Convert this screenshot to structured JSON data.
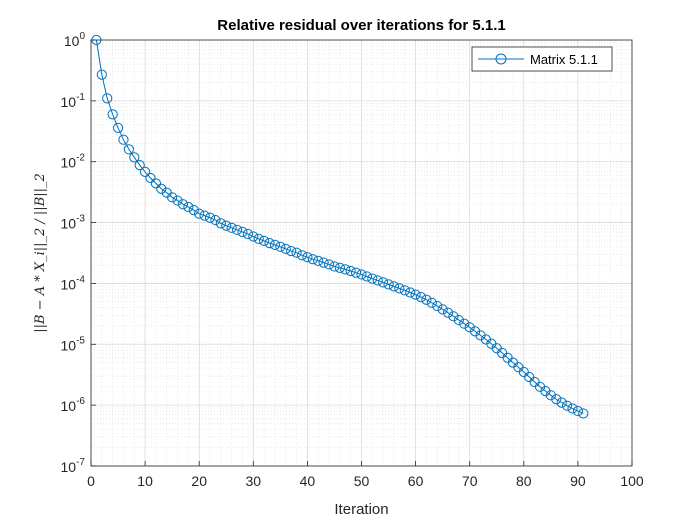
{
  "chart_data": {
    "type": "line",
    "title": "Relative residual over iterations for 5.1.1",
    "xlabel": "Iteration",
    "ylabel": "||B − A * X_i||_2 / ||B||_2",
    "y_scale": "log",
    "xlim": [
      0,
      100
    ],
    "ylim": [
      1e-07,
      1
    ],
    "x_ticks": [
      0,
      10,
      20,
      30,
      40,
      50,
      60,
      70,
      80,
      90,
      100
    ],
    "y_ticks": [
      {
        "base": "10",
        "exp": "0"
      },
      {
        "base": "10",
        "exp": "-1"
      },
      {
        "base": "10",
        "exp": "-2"
      },
      {
        "base": "10",
        "exp": "-3"
      },
      {
        "base": "10",
        "exp": "-4"
      },
      {
        "base": "10",
        "exp": "-5"
      },
      {
        "base": "10",
        "exp": "-6"
      },
      {
        "base": "10",
        "exp": "-7"
      }
    ],
    "grid": true,
    "minor_grid": true,
    "legend_location": "top-right",
    "marker": "open-circle",
    "series": [
      {
        "name": "Matrix 5.1.1",
        "color": "#0072BD",
        "x": [
          1,
          2,
          3,
          4,
          5,
          6,
          7,
          8,
          9,
          10,
          11,
          12,
          13,
          14,
          15,
          16,
          17,
          18,
          19,
          20,
          21,
          22,
          23,
          24,
          25,
          26,
          27,
          28,
          29,
          30,
          31,
          32,
          33,
          34,
          35,
          36,
          37,
          38,
          39,
          40,
          41,
          42,
          43,
          44,
          45,
          46,
          47,
          48,
          49,
          50,
          51,
          52,
          53,
          54,
          55,
          56,
          57,
          58,
          59,
          60,
          61,
          62,
          63,
          64,
          65,
          66,
          67,
          68,
          69,
          70,
          71,
          72,
          73,
          74,
          75,
          76,
          77,
          78,
          79,
          80,
          81,
          82,
          83,
          84,
          85,
          86,
          87,
          88,
          89,
          90,
          91
        ],
        "values": [
          1.0,
          0.27,
          0.11,
          0.06,
          0.036,
          0.023,
          0.016,
          0.0118,
          0.0088,
          0.0068,
          0.0054,
          0.0044,
          0.0036,
          0.0031,
          0.0026,
          0.0023,
          0.002,
          0.0018,
          0.0016,
          0.0014,
          0.0013,
          0.0012,
          0.0011,
          0.00097,
          0.00089,
          0.00082,
          0.00076,
          0.0007,
          0.00065,
          0.00059,
          0.00054,
          0.0005,
          0.00046,
          0.00043,
          0.0004,
          0.00037,
          0.00034,
          0.00032,
          0.00029,
          0.00027,
          0.00025,
          0.000235,
          0.00022,
          0.000205,
          0.00019,
          0.00018,
          0.00017,
          0.00016,
          0.00015,
          0.00014,
          0.00013,
          0.00012,
          0.000112,
          0.000104,
          9.65e-05,
          8.95e-05,
          8.3e-05,
          7.7e-05,
          7.1e-05,
          6.55e-05,
          5.95e-05,
          5.4e-05,
          4.8e-05,
          4.25e-05,
          3.75e-05,
          3.3e-05,
          2.88e-05,
          2.5e-05,
          2.18e-05,
          1.9e-05,
          1.63e-05,
          1.4e-05,
          1.2e-05,
          1.02e-05,
          8.6e-06,
          7.2e-06,
          6e-06,
          5e-06,
          4.2e-06,
          3.5e-06,
          2.9e-06,
          2.4e-06,
          2e-06,
          1.7e-06,
          1.45e-06,
          1.25e-06,
          1.1e-06,
          9.8e-07,
          8.8e-07,
          8e-07,
          7.3e-07
        ]
      }
    ]
  }
}
